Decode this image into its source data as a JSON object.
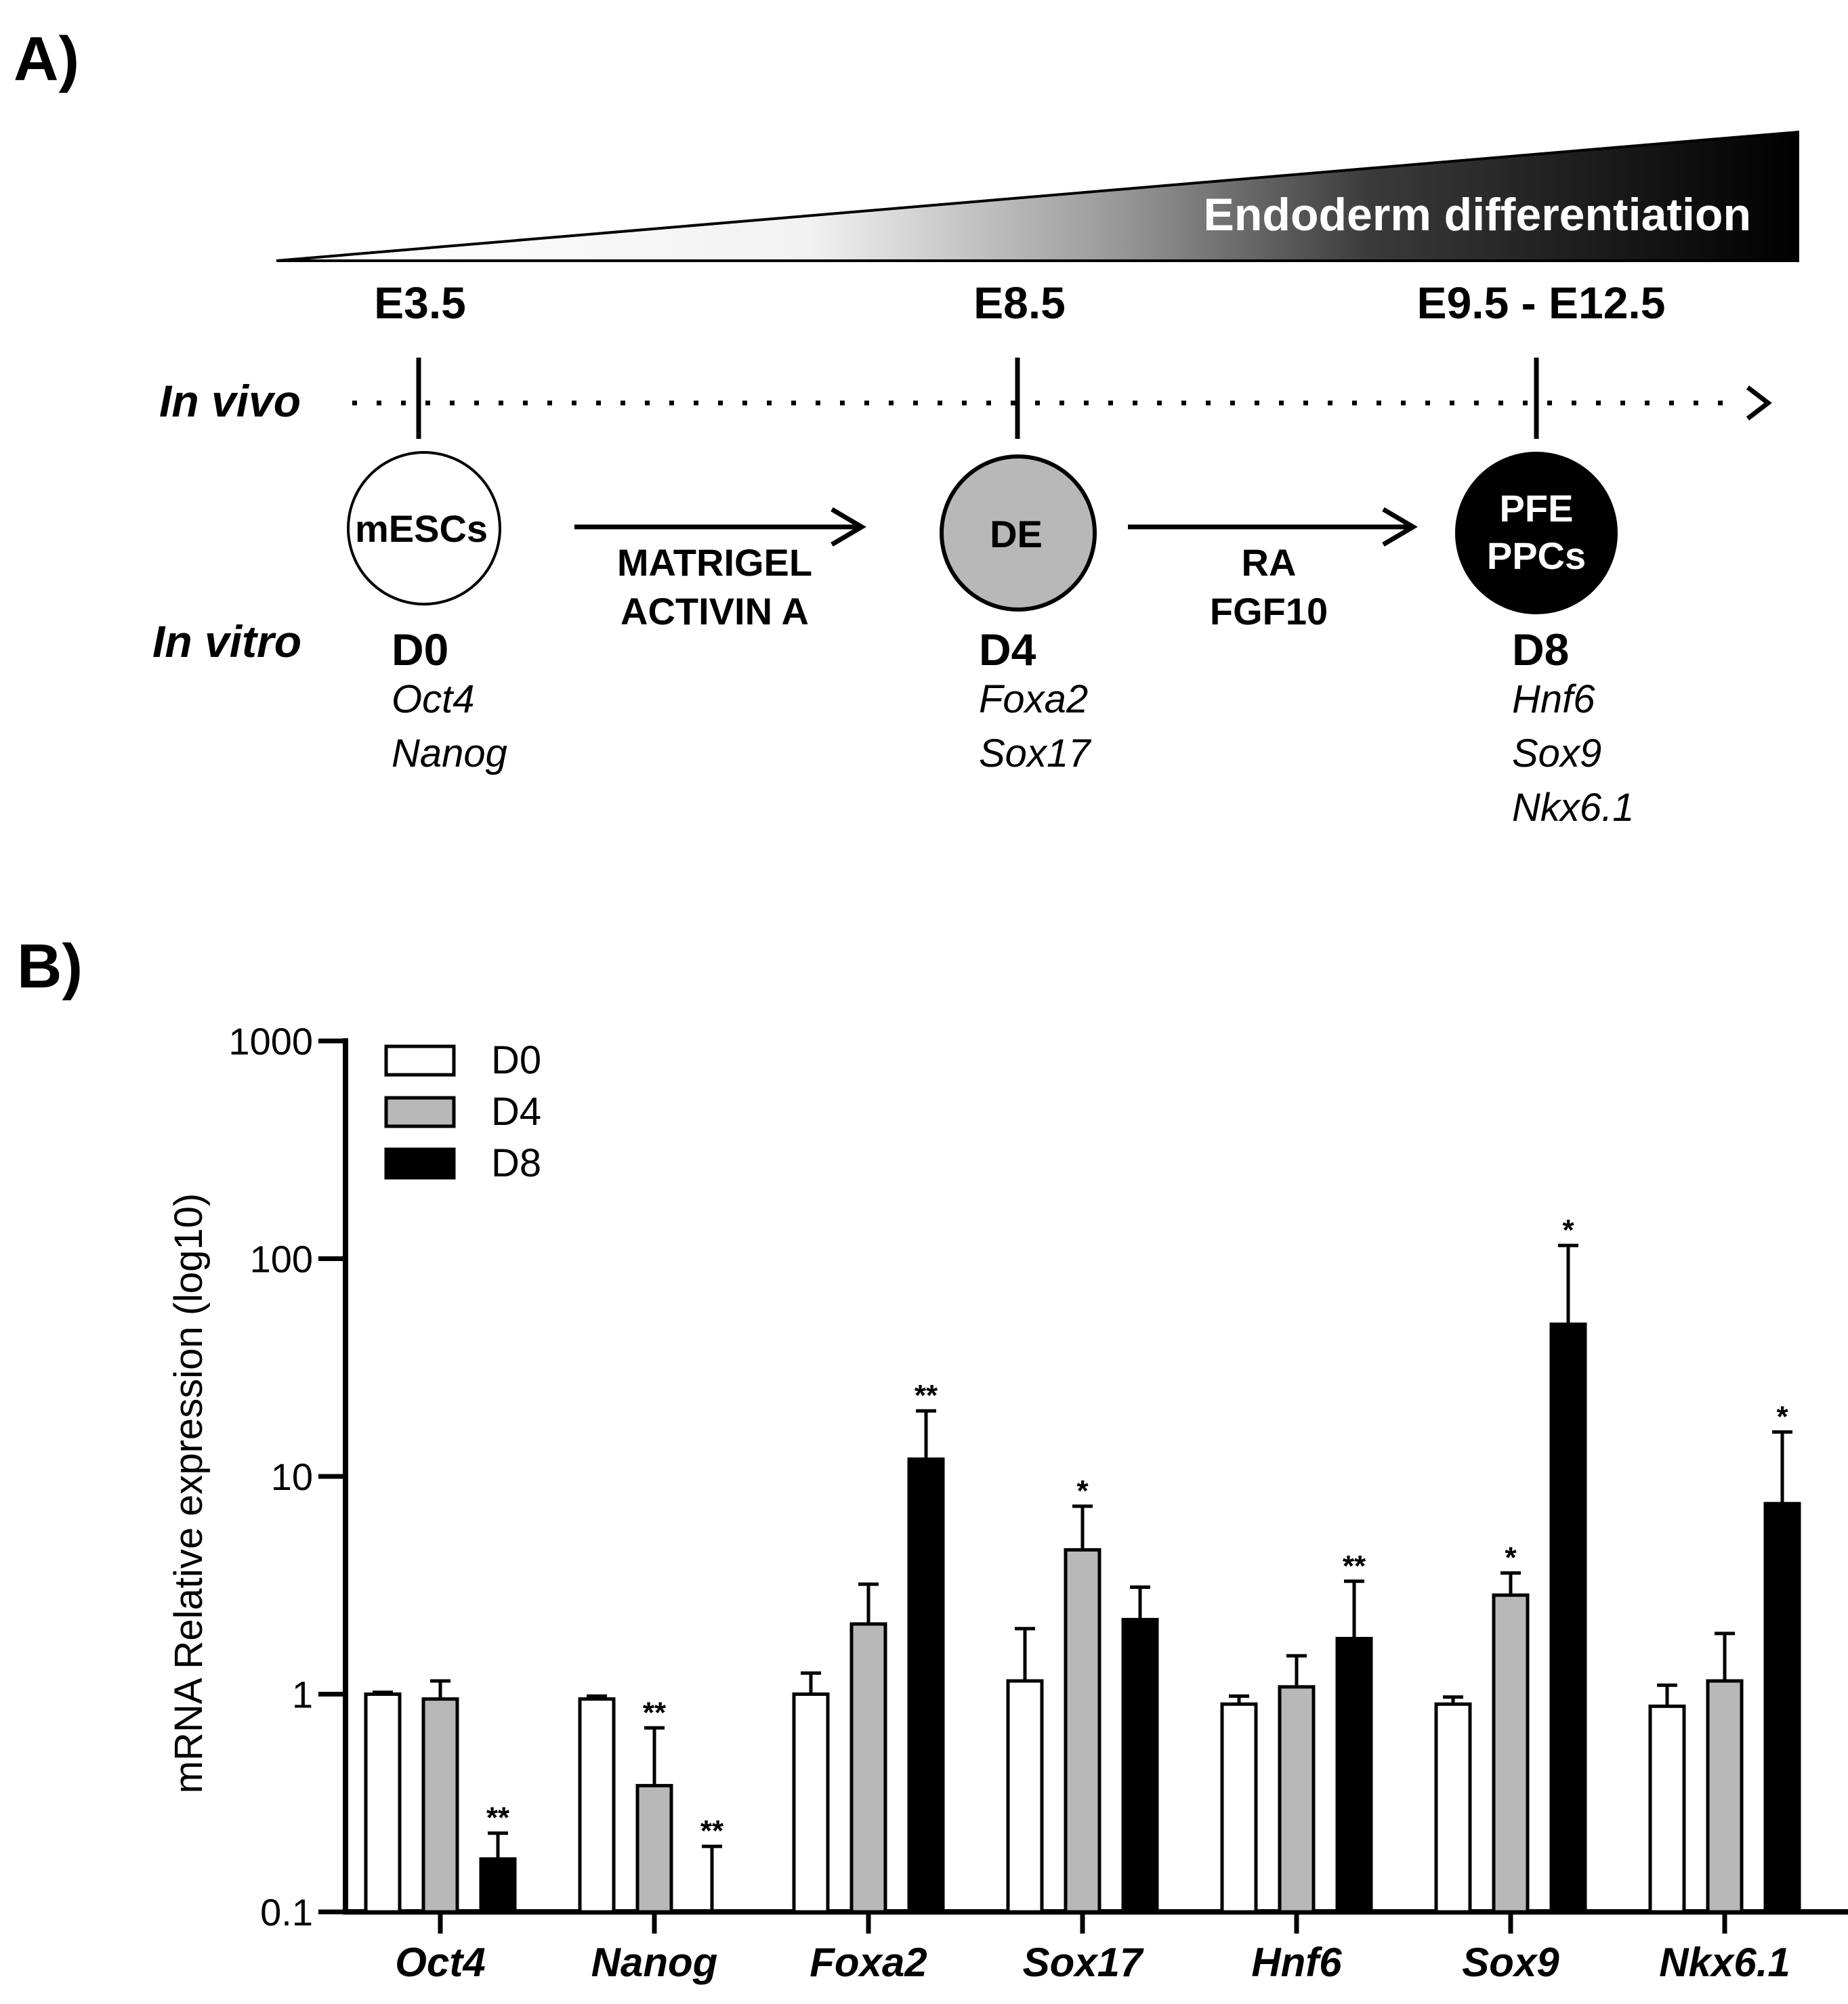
{
  "panelA": {
    "label": "A)",
    "gradient_label": "Endoderm differentiation",
    "in_vivo_label": "In vivo",
    "in_vitro_label": "In vitro",
    "stages": [
      {
        "embryo_day": "E3.5",
        "cell": [
          "mESCs"
        ],
        "day": "D0",
        "markers": [
          "Oct4",
          "Nanog"
        ],
        "fill": "#ffffff",
        "text_color": "#000000"
      },
      {
        "embryo_day": "E8.5",
        "cell": [
          "DE"
        ],
        "day": "D4",
        "markers": [
          "Foxa2",
          "Sox17"
        ],
        "fill": "#b8b8b8",
        "text_color": "#000000"
      },
      {
        "embryo_day": "E9.5 - E12.5",
        "cell": [
          "PFE",
          "PPCs"
        ],
        "day": "D8",
        "markers": [
          "Hnf6",
          "Sox9",
          "Nkx6.1"
        ],
        "fill": "#000000",
        "text_color": "#ffffff"
      }
    ],
    "transitions": [
      {
        "factors": [
          "MATRIGEL",
          "ACTIVIN A"
        ]
      },
      {
        "factors": [
          "RA",
          "FGF10"
        ]
      }
    ]
  },
  "panelB": {
    "label": "B)"
  },
  "chart_data": {
    "type": "bar",
    "title": "",
    "xlabel": "",
    "ylabel": "mRNA Relative expression (log10)",
    "yscale": "log10",
    "ylim": [
      0.1,
      1000
    ],
    "yticks": [
      0.1,
      1,
      10,
      100,
      1000
    ],
    "ytick_labels": [
      "0.1",
      "1",
      "10",
      "100",
      "1000"
    ],
    "categories": [
      "Oct4",
      "Nanog",
      "Foxa2",
      "Sox17",
      "Hnf6",
      "Sox9",
      "Nkx6.1"
    ],
    "legend": {
      "position": "top-left",
      "entries": [
        "D0",
        "D4",
        "D8"
      ]
    },
    "series": [
      {
        "name": "D0",
        "color": "#ffffff",
        "values": [
          1.0,
          0.95,
          1.0,
          1.15,
          0.9,
          0.9,
          0.88
        ],
        "error_upper": [
          1.02,
          0.98,
          1.25,
          2.0,
          0.98,
          0.97,
          1.1
        ],
        "sig": [
          "",
          "",
          "",
          "",
          "",
          "",
          ""
        ]
      },
      {
        "name": "D4",
        "color": "#b8b8b8",
        "values": [
          0.95,
          0.38,
          2.1,
          4.6,
          1.08,
          2.85,
          1.15
        ],
        "error_upper": [
          1.15,
          0.7,
          3.2,
          7.3,
          1.5,
          3.6,
          1.9
        ],
        "sig": [
          "",
          "**",
          "",
          "*",
          "",
          "*",
          ""
        ]
      },
      {
        "name": "D8",
        "color": "#000000",
        "values": [
          0.175,
          0.1,
          12,
          2.2,
          1.8,
          50,
          7.5
        ],
        "error_upper": [
          0.23,
          0.2,
          20,
          3.1,
          3.3,
          115,
          16
        ],
        "sig": [
          "**",
          "**",
          "**",
          "",
          "**",
          "*",
          "*"
        ]
      }
    ]
  }
}
